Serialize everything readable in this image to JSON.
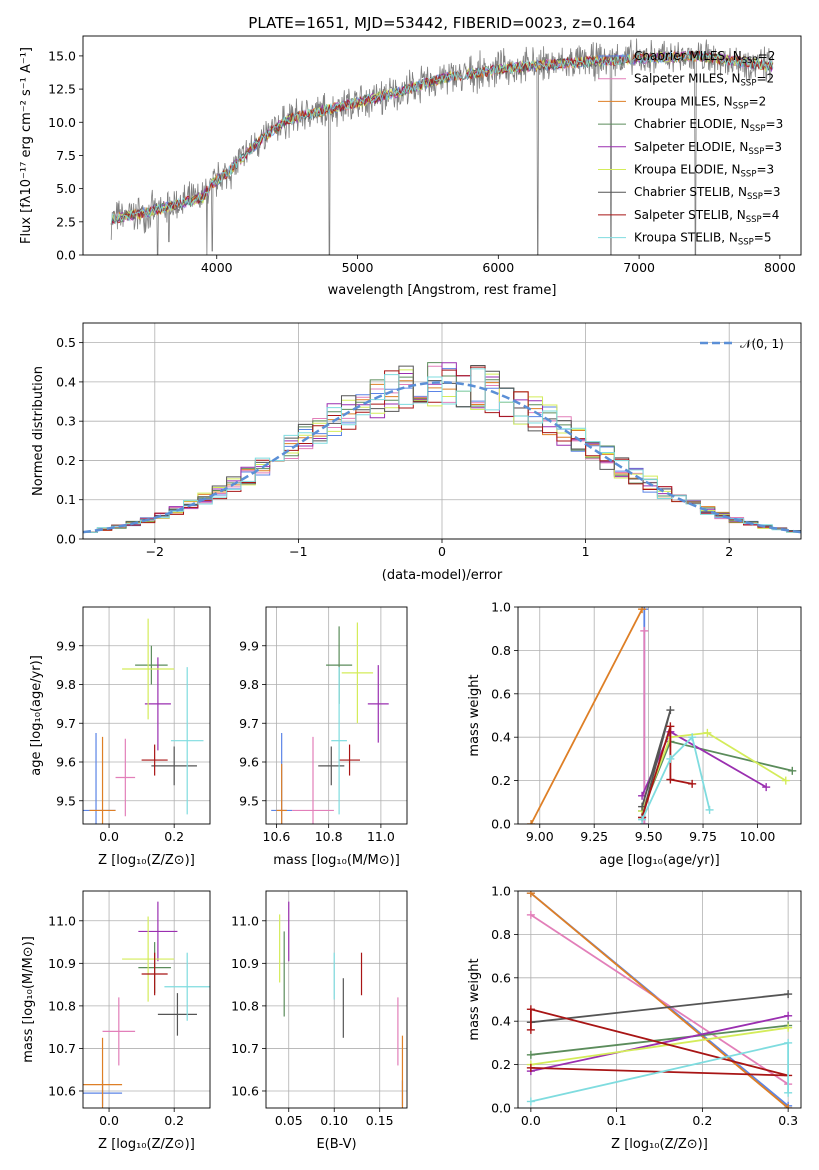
{
  "figure": {
    "title": "PLATE=1651, MJD=53442, FIBERID=0023, z=0.164",
    "series": [
      {
        "name": "Chabrier MILES",
        "nssp": "2",
        "color": "#5b84e6"
      },
      {
        "name": "Salpeter MILES",
        "nssp": "2",
        "color": "#e27fb9"
      },
      {
        "name": "Kroupa MILES",
        "nssp": "2",
        "color": "#de7f26"
      },
      {
        "name": "Chabrier ELODIE",
        "nssp": "3",
        "color": "#5b8c5b"
      },
      {
        "name": "Salpeter ELODIE",
        "nssp": "3",
        "color": "#9a2fb0"
      },
      {
        "name": "Kroupa ELODIE",
        "nssp": "3",
        "color": "#d4ec5a"
      },
      {
        "name": "Chabrier STELIB",
        "nssp": "3",
        "color": "#555555"
      },
      {
        "name": "Salpeter STELIB",
        "nssp": "4",
        "color": "#a81515"
      },
      {
        "name": "Kroupa STELIB",
        "nssp": "5",
        "color": "#7fdcdf"
      }
    ]
  },
  "chart_data": [
    {
      "id": "spectrum",
      "type": "line",
      "title": "PLATE=1651, MJD=53442, FIBERID=0023, z=0.164",
      "xlabel": "wavelength [Angstrom, rest frame]",
      "ylabel": "Flux [fλ10⁻¹⁷ erg cm⁻² s⁻¹ A⁻¹]",
      "xlim": [
        3050,
        8150
      ],
      "ylim": [
        0,
        16.5
      ],
      "xticks": [
        4000,
        5000,
        6000,
        7000,
        8000
      ],
      "yticks": [
        0.0,
        2.5,
        5.0,
        7.5,
        10.0,
        12.5,
        15.0
      ],
      "legend_position": "top-right",
      "x_range": [
        3250,
        7950
      ],
      "continuum": [
        [
          3250,
          2.7
        ],
        [
          3500,
          3.2
        ],
        [
          3700,
          3.8
        ],
        [
          3900,
          4.3
        ],
        [
          3950,
          5.2
        ],
        [
          4100,
          6.4
        ],
        [
          4300,
          8.6
        ],
        [
          4500,
          10.2
        ],
        [
          4800,
          11.0
        ],
        [
          5000,
          11.5
        ],
        [
          5300,
          12.3
        ],
        [
          5600,
          13.3
        ],
        [
          6000,
          14.0
        ],
        [
          6300,
          14.3
        ],
        [
          6700,
          14.6
        ],
        [
          7000,
          14.8
        ],
        [
          7400,
          15.0
        ],
        [
          7700,
          14.6
        ],
        [
          7950,
          14.2
        ]
      ],
      "absorption_dips": [
        [
          3580,
          0.0
        ],
        [
          3660,
          1.0
        ],
        [
          3930,
          0.0
        ],
        [
          3968,
          0.3
        ],
        [
          4340,
          8.0
        ],
        [
          4800,
          0.0
        ],
        [
          5175,
          10.6
        ],
        [
          6280,
          0.0
        ],
        [
          6800,
          0.0
        ],
        [
          7400,
          0.0
        ]
      ],
      "noise_amplitude": 1.1
    },
    {
      "id": "residual-histogram",
      "type": "bar",
      "xlabel": "(data-model)/error",
      "ylabel": "Normed distribution",
      "xlim": [
        -2.5,
        2.5
      ],
      "ylim": [
        0,
        0.55
      ],
      "xticks": [
        -2,
        -1,
        0,
        1,
        2
      ],
      "yticks": [
        0.0,
        0.1,
        0.2,
        0.3,
        0.4,
        0.5
      ],
      "grid": true,
      "reference_curve": {
        "name": "𝒩(0, 1)",
        "mean": 0,
        "sigma": 1,
        "color": "#5b8fd6"
      },
      "bin_width": 0.1,
      "bin_start": -2.5
    },
    {
      "id": "age-vs-z",
      "type": "scatter",
      "xlabel": "Z [log₁₀(Z/Z⊙)]",
      "ylabel": "age  [log₁₀(age/yr)]",
      "xlim": [
        -0.08,
        0.31
      ],
      "ylim": [
        9.44,
        10.0
      ],
      "xticks": [
        0.0,
        0.2
      ],
      "yticks": [
        9.5,
        9.6,
        9.7,
        9.8,
        9.9
      ],
      "points": [
        {
          "series": 0,
          "x": -0.04,
          "y": 9.475,
          "xerr": 0.06,
          "yerr": 0.2
        },
        {
          "series": 1,
          "x": 0.05,
          "y": 9.56,
          "xerr": 0.03,
          "yerr": 0.1
        },
        {
          "series": 2,
          "x": -0.02,
          "y": 9.475,
          "xerr": 0.04,
          "yerr": 0.19
        },
        {
          "series": 3,
          "x": 0.13,
          "y": 9.85,
          "xerr": 0.05,
          "yerr": 0.05
        },
        {
          "series": 4,
          "x": 0.15,
          "y": 9.75,
          "xerr": 0.04,
          "yerr": 0.12
        },
        {
          "series": 5,
          "x": 0.12,
          "y": 9.84,
          "xerr": 0.08,
          "yerr": 0.13
        },
        {
          "series": 6,
          "x": 0.2,
          "y": 9.59,
          "xerr": 0.07,
          "yerr": 0.05
        },
        {
          "series": 7,
          "x": 0.14,
          "y": 9.605,
          "xerr": 0.04,
          "yerr": 0.04
        },
        {
          "series": 8,
          "x": 0.24,
          "y": 9.655,
          "xerr": 0.05,
          "yerr": 0.19
        }
      ]
    },
    {
      "id": "age-vs-mass",
      "type": "scatter",
      "xlabel": "mass [log₁₀(M/M⊙)]",
      "xlim": [
        10.56,
        11.1
      ],
      "ylim": [
        9.44,
        10.0
      ],
      "xticks": [
        10.6,
        10.8,
        11.0
      ],
      "yticks": [
        9.5,
        9.6,
        9.7,
        9.8,
        9.9
      ],
      "points": [
        {
          "series": 0,
          "x": 10.62,
          "y": 9.475,
          "xerr": 0.04,
          "yerr": 0.2
        },
        {
          "series": 1,
          "x": 10.74,
          "y": 9.475,
          "xerr": 0.08,
          "yerr": 0.19
        },
        {
          "series": 2,
          "x": 10.62,
          "y": 9.475,
          "xerr": 0.02,
          "yerr": 0.12
        },
        {
          "series": 3,
          "x": 10.84,
          "y": 9.85,
          "xerr": 0.05,
          "yerr": 0.1
        },
        {
          "series": 4,
          "x": 10.99,
          "y": 9.75,
          "xerr": 0.04,
          "yerr": 0.1
        },
        {
          "series": 5,
          "x": 10.91,
          "y": 9.83,
          "xerr": 0.06,
          "yerr": 0.13
        },
        {
          "series": 6,
          "x": 10.81,
          "y": 9.59,
          "xerr": 0.05,
          "yerr": 0.05
        },
        {
          "series": 7,
          "x": 10.88,
          "y": 9.605,
          "xerr": 0.04,
          "yerr": 0.04
        },
        {
          "series": 8,
          "x": 10.84,
          "y": 9.655,
          "xerr": 0.03,
          "yerr": 0.19
        }
      ]
    },
    {
      "id": "mass-weight-vs-age",
      "type": "line",
      "xlabel": "age  [log₁₀(age/yr)]",
      "ylabel": "mass weight",
      "xlim": [
        8.9,
        10.2
      ],
      "ylim": [
        0,
        1.0
      ],
      "xticks": [
        9.0,
        9.25,
        9.5,
        9.75,
        10.0
      ],
      "xtick_labels": [
        "9.00",
        "9.25",
        "9.50",
        "9.75",
        "10.00"
      ],
      "yticks": [
        0.0,
        0.2,
        0.4,
        0.6,
        0.8,
        1.0
      ],
      "series_points": [
        {
          "series": 0,
          "points": [
            [
              9.48,
              0.0
            ],
            [
              9.48,
              0.99
            ]
          ]
        },
        {
          "series": 1,
          "points": [
            [
              9.48,
              0.0
            ],
            [
              9.48,
              0.89
            ]
          ]
        },
        {
          "series": 2,
          "points": [
            [
              8.96,
              0.0
            ],
            [
              9.47,
              0.99
            ]
          ]
        },
        {
          "series": 3,
          "points": [
            [
              9.47,
              0.06
            ],
            [
              9.6,
              0.38
            ],
            [
              10.16,
              0.245
            ]
          ]
        },
        {
          "series": 4,
          "points": [
            [
              9.47,
              0.13
            ],
            [
              9.6,
              0.425
            ],
            [
              10.04,
              0.17
            ]
          ]
        },
        {
          "series": 5,
          "points": [
            [
              9.47,
              0.06
            ],
            [
              9.6,
              0.4
            ],
            [
              9.77,
              0.42
            ],
            [
              10.13,
              0.2
            ]
          ]
        },
        {
          "series": 6,
          "points": [
            [
              9.47,
              0.08
            ],
            [
              9.6,
              0.525
            ],
            [
              9.47,
              0.03
            ]
          ]
        },
        {
          "series": 7,
          "points": [
            [
              9.47,
              0.03
            ],
            [
              9.6,
              0.45
            ],
            [
              9.6,
              0.205
            ],
            [
              9.7,
              0.185
            ]
          ]
        },
        {
          "series": 8,
          "points": [
            [
              9.47,
              0.02
            ],
            [
              9.6,
              0.3
            ],
            [
              9.7,
              0.4
            ],
            [
              9.78,
              0.065
            ]
          ]
        }
      ]
    },
    {
      "id": "mass-vs-z",
      "type": "scatter",
      "xlabel": "Z [log₁₀(Z/Z⊙)]",
      "ylabel": "mass [log₁₀(M/M⊙)]",
      "xlim": [
        -0.08,
        0.31
      ],
      "ylim": [
        10.56,
        11.07
      ],
      "xticks": [
        0.0,
        0.2
      ],
      "yticks": [
        10.6,
        10.7,
        10.8,
        10.9,
        11.0
      ],
      "points": [
        {
          "series": 0,
          "x": -0.02,
          "y": 10.595,
          "xerr": 0.06,
          "yerr": 0.03
        },
        {
          "series": 1,
          "x": 0.03,
          "y": 10.74,
          "xerr": 0.05,
          "yerr": 0.08
        },
        {
          "series": 2,
          "x": -0.02,
          "y": 10.615,
          "xerr": 0.06,
          "yerr": 0.11
        },
        {
          "series": 3,
          "x": 0.14,
          "y": 10.89,
          "xerr": 0.05,
          "yerr": 0.06
        },
        {
          "series": 4,
          "x": 0.15,
          "y": 10.975,
          "xerr": 0.06,
          "yerr": 0.07
        },
        {
          "series": 5,
          "x": 0.12,
          "y": 10.91,
          "xerr": 0.08,
          "yerr": 0.1
        },
        {
          "series": 6,
          "x": 0.21,
          "y": 10.78,
          "xerr": 0.06,
          "yerr": 0.05
        },
        {
          "series": 7,
          "x": 0.14,
          "y": 10.875,
          "xerr": 0.04,
          "yerr": 0.05
        },
        {
          "series": 8,
          "x": 0.24,
          "y": 10.845,
          "xerr": 0.07,
          "yerr": 0.08
        }
      ]
    },
    {
      "id": "mass-vs-ebv",
      "type": "scatter",
      "xlabel": "E(B-V)",
      "xlim": [
        0.025,
        0.18
      ],
      "ylim": [
        10.56,
        11.07
      ],
      "xticks": [
        0.05,
        0.1,
        0.15
      ],
      "yticks": [
        10.6,
        10.7,
        10.8,
        10.9,
        11.0
      ],
      "points": [
        {
          "series": 0,
          "x": 0.175,
          "y": 10.595,
          "xerr": 0,
          "yerr": 0.03
        },
        {
          "series": 1,
          "x": 0.17,
          "y": 10.74,
          "xerr": 0,
          "yerr": 0.08
        },
        {
          "series": 2,
          "x": 0.175,
          "y": 10.63,
          "xerr": 0,
          "yerr": 0.1
        },
        {
          "series": 3,
          "x": 0.045,
          "y": 10.875,
          "xerr": 0,
          "yerr": 0.1
        },
        {
          "series": 4,
          "x": 0.05,
          "y": 10.975,
          "xerr": 0,
          "yerr": 0.07
        },
        {
          "series": 5,
          "x": 0.04,
          "y": 10.935,
          "xerr": 0,
          "yerr": 0.08
        },
        {
          "series": 6,
          "x": 0.11,
          "y": 10.795,
          "xerr": 0,
          "yerr": 0.07
        },
        {
          "series": 7,
          "x": 0.13,
          "y": 10.875,
          "xerr": 0,
          "yerr": 0.05
        },
        {
          "series": 8,
          "x": 0.1,
          "y": 10.87,
          "xerr": 0,
          "yerr": 0.055
        }
      ]
    },
    {
      "id": "mass-weight-vs-z",
      "type": "line",
      "xlabel": "Z [log₁₀(Z/Z⊙)]",
      "ylabel": "mass weight",
      "xlim": [
        -0.015,
        0.315
      ],
      "ylim": [
        0,
        1.0
      ],
      "xticks": [
        0.0,
        0.1,
        0.2,
        0.3
      ],
      "xtick_labels": [
        "0.0",
        "0.1",
        "0.2",
        "0.3"
      ],
      "yticks": [
        0.0,
        0.2,
        0.4,
        0.6,
        0.8,
        1.0
      ],
      "series_points": [
        {
          "series": 0,
          "points": [
            [
              0.0,
              0.99
            ],
            [
              0.3,
              0.01
            ]
          ]
        },
        {
          "series": 1,
          "points": [
            [
              0.0,
              0.89
            ],
            [
              0.3,
              0.11
            ]
          ]
        },
        {
          "series": 2,
          "points": [
            [
              0.0,
              0.99
            ],
            [
              0.3,
              0.0
            ]
          ]
        },
        {
          "series": 3,
          "points": [
            [
              0.0,
              0.245
            ],
            [
              0.3,
              0.38
            ]
          ]
        },
        {
          "series": 4,
          "points": [
            [
              0.0,
              0.17
            ],
            [
              0.3,
              0.425
            ]
          ]
        },
        {
          "series": 5,
          "points": [
            [
              0.0,
              0.2
            ],
            [
              0.3,
              0.37
            ]
          ]
        },
        {
          "series": 6,
          "points": [
            [
              0.0,
              0.395
            ],
            [
              0.3,
              0.525
            ]
          ]
        },
        {
          "series": 7,
          "points": [
            [
              0.0,
              0.185
            ],
            [
              0.3,
              0.15
            ],
            [
              0.0,
              0.455
            ],
            [
              0.0,
              0.36
            ]
          ]
        },
        {
          "series": 8,
          "points": [
            [
              0.0,
              0.03
            ],
            [
              0.3,
              0.3
            ],
            [
              0.3,
              0.07
            ]
          ]
        }
      ]
    }
  ]
}
